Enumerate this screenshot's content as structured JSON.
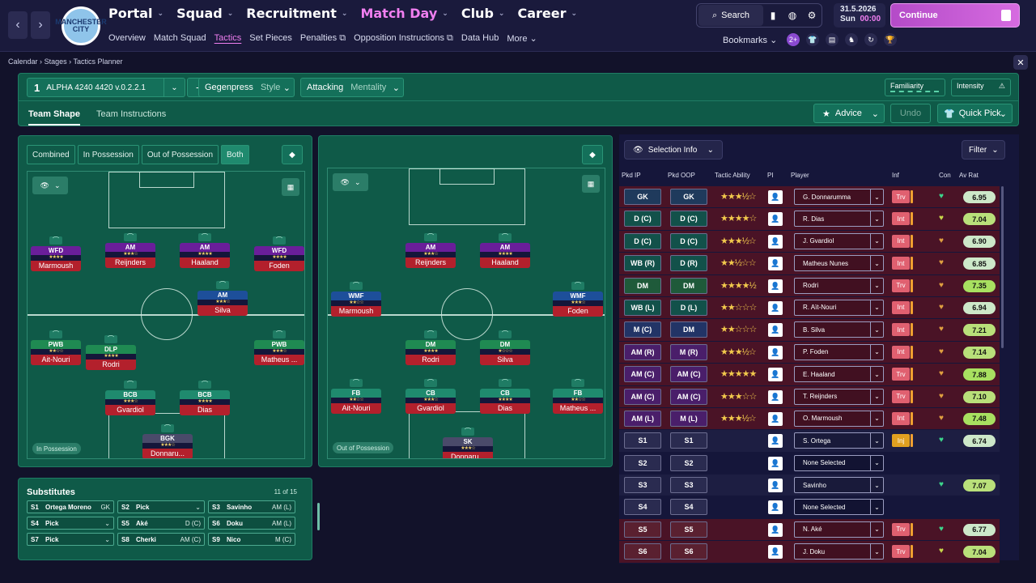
{
  "nav": {
    "main": [
      {
        "label": "Portal"
      },
      {
        "label": "Squad"
      },
      {
        "label": "Recruitment"
      },
      {
        "label": "Match Day"
      },
      {
        "label": "Club"
      },
      {
        "label": "Career"
      }
    ],
    "sub": [
      "Overview",
      "Match Squad",
      "Tactics",
      "Set Pieces",
      "Penalties",
      "Opposition Instructions",
      "Data Hub",
      "More"
    ],
    "crest_text": "MANCHESTER CITY",
    "search": "Search",
    "date": "31.5.2026",
    "day": "Sun",
    "time": "00:00",
    "continue": "Continue",
    "bookmarks": "Bookmarks",
    "badge": "2+"
  },
  "breadcrumb": [
    "Calendar",
    "Stages",
    "Tactics Planner"
  ],
  "tactic": {
    "number": "1",
    "name": "ALPHA 4240 4420 v.0.2.2.1",
    "style_value": "Gegenpress",
    "style_label": "Style",
    "mentality_value": "Attacking",
    "mentality_label": "Mentality",
    "familiarity": "Familiarity",
    "intensity": "Intensity",
    "tabs": [
      "Team Shape",
      "Team Instructions"
    ],
    "advice": "Advice",
    "undo": "Undo",
    "quick_pick": "Quick Pick"
  },
  "modes": [
    "Combined",
    "In Possession",
    "Out of Possession",
    "Both"
  ],
  "pitch_in": {
    "label": "In Possession",
    "players": [
      {
        "role": "WFD",
        "name": "Marmoush",
        "stars": "★★★★",
        "color": "#6a1e9a"
      },
      {
        "role": "AM",
        "name": "Reijnders",
        "stars": "★★★☆",
        "color": "#6a1e9a"
      },
      {
        "role": "AM",
        "name": "Haaland",
        "stars": "★★★★",
        "color": "#6a1e9a"
      },
      {
        "role": "WFD",
        "name": "Foden",
        "stars": "★★★★",
        "color": "#6a1e9a"
      },
      {
        "role": "AM",
        "name": "Silva",
        "stars": "★★★☆",
        "color": "#1d4f9a"
      },
      {
        "role": "PWB",
        "name": "Ait-Nouri",
        "stars": "★★☆☆",
        "color": "#1f8a52"
      },
      {
        "role": "DLP",
        "name": "Rodri",
        "stars": "★★★★",
        "color": "#1f8a52"
      },
      {
        "role": "PWB",
        "name": "Matheus ...",
        "stars": "★★★☆",
        "color": "#1f8a52"
      },
      {
        "role": "BCB",
        "name": "Gvardiol",
        "stars": "★★★☆",
        "color": "#1f8a6e"
      },
      {
        "role": "BCB",
        "name": "Dias",
        "stars": "★★★★",
        "color": "#1f8a6e"
      },
      {
        "role": "BGK",
        "name": "Donnaru...",
        "stars": "★★★☆",
        "color": "#4a4a6a"
      }
    ]
  },
  "pitch_out": {
    "label": "Out of Possession",
    "players": [
      {
        "role": "AM",
        "name": "Reijnders",
        "stars": "★★★☆",
        "color": "#6a1e9a"
      },
      {
        "role": "AM",
        "name": "Haaland",
        "stars": "★★★★",
        "color": "#6a1e9a"
      },
      {
        "role": "WMF",
        "name": "Marmoush",
        "stars": "★★☆☆",
        "color": "#1d4f9a"
      },
      {
        "role": "WMF",
        "name": "Foden",
        "stars": "★★★☆",
        "color": "#1d4f9a"
      },
      {
        "role": "DM",
        "name": "Rodri",
        "stars": "★★★★",
        "color": "#1f8a52"
      },
      {
        "role": "DM",
        "name": "Silva",
        "stars": "★☆☆☆",
        "color": "#1f8a52"
      },
      {
        "role": "FB",
        "name": "Ait-Nouri",
        "stars": "★★☆☆",
        "color": "#1f8a6e"
      },
      {
        "role": "CB",
        "name": "Gvardiol",
        "stars": "★★★☆",
        "color": "#1f8a6e"
      },
      {
        "role": "CB",
        "name": "Dias",
        "stars": "★★★★",
        "color": "#1f8a6e"
      },
      {
        "role": "FB",
        "name": "Matheus ...",
        "stars": "★★☆☆",
        "color": "#1f8a6e"
      },
      {
        "role": "SK",
        "name": "Donnaru...",
        "stars": "★★★☆",
        "color": "#4a4a6a"
      }
    ]
  },
  "subs": {
    "title": "Substitutes",
    "count": "11 of 15",
    "items": [
      {
        "slot": "S1",
        "name": "Ortega Moreno",
        "pos": "GK"
      },
      {
        "slot": "S2",
        "name": "Pick",
        "pos": "⌄"
      },
      {
        "slot": "S3",
        "name": "Savinho",
        "pos": "AM (L)"
      },
      {
        "slot": "S4",
        "name": "Pick",
        "pos": "⌄"
      },
      {
        "slot": "S5",
        "name": "Aké",
        "pos": "D (C)"
      },
      {
        "slot": "S6",
        "name": "Doku",
        "pos": "AM (L)"
      },
      {
        "slot": "S7",
        "name": "Pick",
        "pos": "⌄"
      },
      {
        "slot": "S8",
        "name": "Cherki",
        "pos": "AM (C)"
      },
      {
        "slot": "S9",
        "name": "Nico",
        "pos": "M (C)"
      }
    ]
  },
  "selection": {
    "info": "Selection Info",
    "filter": "Filter",
    "columns": [
      "Pkd IP",
      "Pkd OOP",
      "Tactic Ability",
      "PI",
      "Player",
      "Inf",
      "Con",
      "Av Rat"
    ],
    "rows": [
      {
        "ip": "GK",
        "oop": "GK",
        "stars": "★★★½☆",
        "player": "G. Donnarumma",
        "inf": "Trv",
        "rat": "6.95",
        "bg": "#4a1326",
        "band": "#1f3a5c",
        "con": "♥",
        "con_color": "#3dd68c",
        "rat_color": "#cde8c9",
        "inf_color": "#e06070"
      },
      {
        "ip": "D (C)",
        "oop": "D (C)",
        "stars": "★★★★☆",
        "player": "R. Dias",
        "inf": "Int",
        "rat": "7.04",
        "bg": "#4a1326",
        "band": "#12514a",
        "con": "♥",
        "con_color": "#c8d84a",
        "rat_color": "#b9e07a",
        "inf_color": "#e06070"
      },
      {
        "ip": "D (C)",
        "oop": "D (C)",
        "stars": "★★★½☆",
        "player": "J. Gvardiol",
        "inf": "Int",
        "rat": "6.90",
        "bg": "#4a1326",
        "band": "#12514a",
        "con": "♥",
        "con_color": "#e0a040",
        "rat_color": "#cde8c9",
        "inf_color": "#e06070"
      },
      {
        "ip": "WB (R)",
        "oop": "D (R)",
        "stars": "★★½☆☆",
        "player": "Matheus Nunes",
        "inf": "Int",
        "rat": "6.85",
        "bg": "#4a1326",
        "band": "#12514a",
        "con": "♥",
        "con_color": "#e0a040",
        "rat_color": "#cde8c9",
        "inf_color": "#e06070"
      },
      {
        "ip": "DM",
        "oop": "DM",
        "stars": "★★★★½",
        "player": "Rodri",
        "inf": "Trv",
        "rat": "7.35",
        "bg": "#4a1326",
        "band": "#1f5a3a",
        "con": "♥",
        "con_color": "#e0a040",
        "rat_color": "#a8e060",
        "inf_color": "#e06070"
      },
      {
        "ip": "WB (L)",
        "oop": "D (L)",
        "stars": "★★☆☆☆",
        "player": "R. Aït-Nouri",
        "inf": "Int",
        "rat": "6.94",
        "bg": "#4a1326",
        "band": "#12514a",
        "con": "♥",
        "con_color": "#e0a040",
        "rat_color": "#cde8c9",
        "inf_color": "#e06070"
      },
      {
        "ip": "M (C)",
        "oop": "DM",
        "stars": "★★☆☆☆",
        "player": "B. Silva",
        "inf": "Int",
        "rat": "7.21",
        "bg": "#4a1326",
        "band": "#223466",
        "con": "♥",
        "con_color": "#e0a040",
        "rat_color": "#b9e07a",
        "inf_color": "#e06070"
      },
      {
        "ip": "AM (R)",
        "oop": "M (R)",
        "stars": "★★★½☆",
        "player": "P. Foden",
        "inf": "Int",
        "rat": "7.14",
        "bg": "#4a1326",
        "band": "#4a1e6a",
        "con": "♥",
        "con_color": "#e0a040",
        "rat_color": "#b9e07a",
        "inf_color": "#e06070"
      },
      {
        "ip": "AM (C)",
        "oop": "AM (C)",
        "stars": "★★★★★",
        "player": "E. Haaland",
        "inf": "Trv",
        "rat": "7.88",
        "bg": "#4a1326",
        "band": "#4a1e6a",
        "con": "♥",
        "con_color": "#e0a040",
        "rat_color": "#a8e060",
        "inf_color": "#e06070"
      },
      {
        "ip": "AM (C)",
        "oop": "AM (C)",
        "stars": "★★★☆☆",
        "player": "T. Reijnders",
        "inf": "Trv",
        "rat": "7.10",
        "bg": "#4a1326",
        "band": "#4a1e6a",
        "con": "♥",
        "con_color": "#e0a040",
        "rat_color": "#b9e07a",
        "inf_color": "#e06070"
      },
      {
        "ip": "AM (L)",
        "oop": "M (L)",
        "stars": "★★★½☆",
        "player": "O. Marmoush",
        "inf": "Int",
        "rat": "7.48",
        "bg": "#4a1326",
        "band": "#4a1e6a",
        "con": "♥",
        "con_color": "#e0a040",
        "rat_color": "#a8e060",
        "inf_color": "#e06070"
      },
      {
        "ip": "S1",
        "oop": "S1",
        "stars": "",
        "player": "S. Ortega",
        "inf": "Inj",
        "rat": "6.74",
        "bg": "#1d1e42",
        "band": "#2a2b50",
        "con": "♥",
        "con_color": "#3dd68c",
        "rat_color": "#cde8c9",
        "inf_color": "#e0a020"
      },
      {
        "ip": "S2",
        "oop": "S2",
        "stars": "",
        "player": "None Selected",
        "inf": "",
        "rat": "",
        "bg": "#15163a",
        "band": "#2a2b50",
        "con": "",
        "con_color": "#3dd68c",
        "rat_color": "#cde8c9",
        "inf_color": "#e06070"
      },
      {
        "ip": "S3",
        "oop": "S3",
        "stars": "",
        "player": "Savinho",
        "inf": "",
        "rat": "7.07",
        "bg": "#1d1e42",
        "band": "#2a2b50",
        "con": "♥",
        "con_color": "#3dd68c",
        "rat_color": "#b9e07a",
        "inf_color": "#e06070"
      },
      {
        "ip": "S4",
        "oop": "S4",
        "stars": "",
        "player": "None Selected",
        "inf": "",
        "rat": "",
        "bg": "#15163a",
        "band": "#2a2b50",
        "con": "",
        "con_color": "#3dd68c",
        "rat_color": "#cde8c9",
        "inf_color": "#e06070"
      },
      {
        "ip": "S5",
        "oop": "S5",
        "stars": "",
        "player": "N. Aké",
        "inf": "Trv",
        "rat": "6.77",
        "bg": "#4a1326",
        "band": "#5a2030",
        "con": "♥",
        "con_color": "#3dd68c",
        "rat_color": "#cde8c9",
        "inf_color": "#e06070"
      },
      {
        "ip": "S6",
        "oop": "S6",
        "stars": "",
        "player": "J. Doku",
        "inf": "Trv",
        "rat": "7.04",
        "bg": "#4a1326",
        "band": "#5a2030",
        "con": "♥",
        "con_color": "#c8d84a",
        "rat_color": "#b9e07a",
        "inf_color": "#e06070"
      }
    ]
  }
}
